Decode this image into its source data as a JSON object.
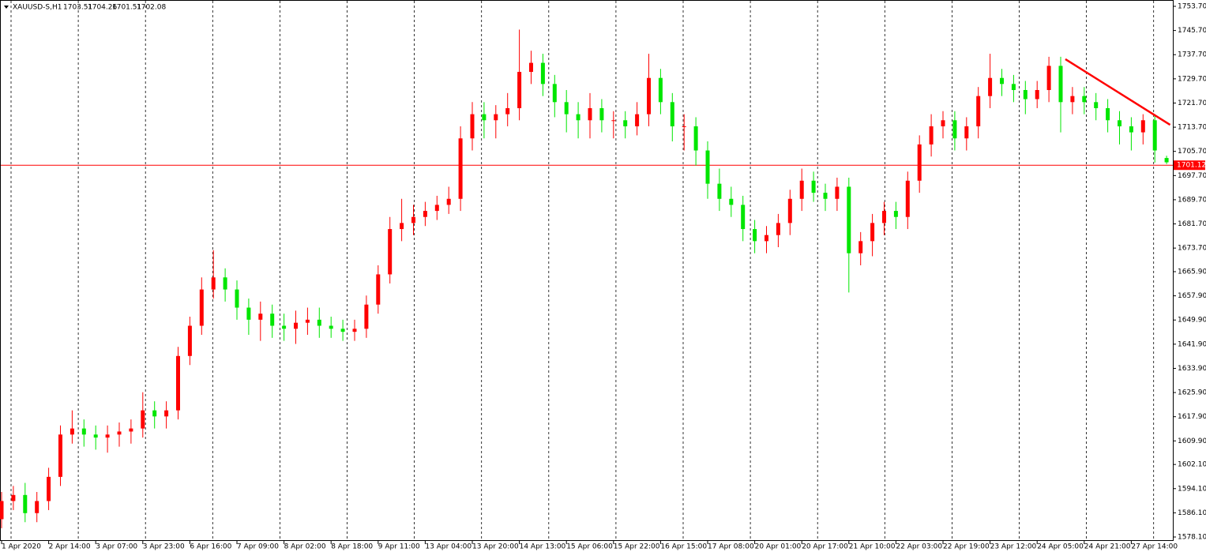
{
  "chart_data": {
    "type": "candlestick",
    "symbol": "XAUUSD-S,H1",
    "categories": [
      "1 Apr 2020",
      null,
      null,
      null,
      "2 Apr 14:00",
      null,
      null,
      null,
      "3 Apr 07:00",
      null,
      null,
      null,
      "3 Apr 23:00",
      null,
      null,
      null,
      "6 Apr 16:00",
      null,
      null,
      null,
      "7 Apr 09:00",
      null,
      null,
      null,
      "8 Apr 02:00",
      null,
      null,
      null,
      "8 Apr 18:00",
      null,
      null,
      null,
      "9 Apr 11:00",
      null,
      null,
      null,
      "13 Apr 04:00",
      null,
      null,
      null,
      "13 Apr 20:00",
      null,
      null,
      null,
      "14 Apr 13:00",
      null,
      null,
      null,
      "15 Apr 06:00",
      null,
      null,
      null,
      "15 Apr 22:00",
      null,
      null,
      null,
      "16 Apr 15:00",
      null,
      null,
      null,
      "17 Apr 08:00",
      null,
      null,
      null,
      "20 Apr 01:00",
      null,
      null,
      null,
      "20 Apr 17:00",
      null,
      null,
      null,
      "21 Apr 10:00",
      null,
      null,
      null,
      "22 Apr 03:00",
      null,
      null,
      null,
      "22 Apr 19:00",
      null,
      null,
      null,
      "23 Apr 12:00",
      null,
      null,
      null,
      "24 Apr 05:00",
      null,
      null,
      null,
      "24 Apr 21:00",
      null,
      null,
      null,
      "27 Apr 14:00",
      null,
      null,
      null
    ],
    "open": [
      1584,
      1590,
      1592,
      1586,
      1590,
      1598,
      1612,
      1614,
      1612,
      1611,
      1612,
      1613,
      1614,
      1620,
      1618,
      1620,
      1638,
      1648,
      1660,
      1664,
      1660,
      1654,
      1650,
      1652,
      1648,
      1647,
      1649,
      1650,
      1648,
      1647,
      1646,
      1647,
      1655,
      1665,
      1680,
      1682,
      1684,
      1686,
      1688,
      1690,
      1710,
      1718,
      1716,
      1718,
      1720,
      1732,
      1735,
      1728,
      1722,
      1718,
      1716,
      1720,
      1716,
      1716,
      1714,
      1718,
      1730,
      1722,
      1714,
      1714,
      1706,
      1695,
      1690,
      1688,
      1680,
      1676,
      1678,
      1682,
      1690,
      1696,
      1692,
      1690,
      1694,
      1672,
      1676,
      1682,
      1686,
      1684,
      1696,
      1708,
      1714,
      1716,
      1710,
      1714,
      1724,
      1730,
      1728,
      1726,
      1723,
      1726,
      1734,
      1722,
      1724,
      1722,
      1720,
      1716,
      1714,
      1712,
      1716,
      1703.51
    ],
    "high": [
      1593,
      1595,
      1596,
      1593,
      1601,
      1615,
      1620,
      1617,
      1615,
      1615,
      1616,
      1617,
      1626,
      1623,
      1623,
      1641,
      1651,
      1664,
      1673,
      1667,
      1663,
      1657,
      1656,
      1655,
      1652,
      1653,
      1654,
      1654,
      1651,
      1650,
      1650,
      1658,
      1668,
      1684,
      1690,
      1688,
      1689,
      1691,
      1694,
      1714,
      1722,
      1722,
      1721,
      1725,
      1746,
      1739,
      1738,
      1731,
      1726,
      1722,
      1725,
      1723,
      1719,
      1719,
      1722,
      1738,
      1733,
      1725,
      1718,
      1717,
      1709,
      1700,
      1694,
      1691,
      1683,
      1681,
      1685,
      1693,
      1700,
      1699,
      1695,
      1697,
      1697,
      1679,
      1685,
      1689,
      1689,
      1699,
      1711,
      1718,
      1719,
      1719,
      1717,
      1727,
      1738,
      1733,
      1731,
      1729,
      1729,
      1737,
      1737,
      1727,
      1727,
      1725,
      1723,
      1719,
      1717,
      1718,
      1718,
      1704.26
    ],
    "low": [
      1581,
      1587,
      1583,
      1583,
      1587,
      1595,
      1609,
      1608,
      1607,
      1606,
      1608,
      1609,
      1611,
      1614,
      1614,
      1617,
      1635,
      1645,
      1657,
      1656,
      1650,
      1645,
      1643,
      1644,
      1643,
      1642,
      1645,
      1644,
      1644,
      1643,
      1643,
      1644,
      1652,
      1662,
      1676,
      1678,
      1681,
      1683,
      1685,
      1686,
      1706,
      1710,
      1710,
      1714,
      1716,
      1728,
      1724,
      1717,
      1712,
      1710,
      1710,
      1712,
      1710,
      1710,
      1711,
      1714,
      1718,
      1709,
      1706,
      1701,
      1690,
      1686,
      1684,
      1676,
      1672,
      1672,
      1674,
      1678,
      1686,
      1689,
      1686,
      1686,
      1659,
      1668,
      1671,
      1678,
      1680,
      1680,
      1692,
      1704,
      1710,
      1706,
      1706,
      1710,
      1720,
      1724,
      1722,
      1718,
      1720,
      1722,
      1712,
      1718,
      1718,
      1716,
      1712,
      1708,
      1706,
      1708,
      1702,
      1701.51
    ],
    "close": [
      1590,
      1592,
      1586,
      1590,
      1598,
      1612,
      1614,
      1612,
      1611,
      1612,
      1613,
      1614,
      1620,
      1618,
      1620,
      1638,
      1648,
      1660,
      1664,
      1660,
      1654,
      1650,
      1652,
      1648,
      1647,
      1649,
      1650,
      1648,
      1647,
      1646,
      1647,
      1655,
      1665,
      1680,
      1682,
      1684,
      1686,
      1688,
      1690,
      1710,
      1718,
      1716,
      1718,
      1720,
      1732,
      1735,
      1728,
      1722,
      1718,
      1716,
      1720,
      1716,
      1716,
      1714,
      1718,
      1730,
      1722,
      1714,
      1714,
      1706,
      1695,
      1690,
      1688,
      1680,
      1676,
      1678,
      1682,
      1690,
      1696,
      1692,
      1690,
      1694,
      1672,
      1676,
      1682,
      1686,
      1684,
      1696,
      1708,
      1714,
      1716,
      1710,
      1714,
      1724,
      1730,
      1728,
      1726,
      1723,
      1726,
      1734,
      1722,
      1724,
      1722,
      1720,
      1716,
      1714,
      1712,
      1716,
      1706,
      1702.08
    ],
    "up_color": "#ff0000",
    "down_color": "#00e600",
    "bid": 1701.12,
    "bid_color": "#ff0000",
    "trendline": {
      "x": [
        90.4,
        99.3
      ],
      "y": [
        1736.2,
        1714.5
      ],
      "color": "#ff0000"
    },
    "ylim": [
      1578.1,
      1753.7
    ],
    "yticks": [
      {
        "value": 1753.7,
        "label": "1753.70"
      },
      {
        "value": 1745.7,
        "label": "1745.70"
      },
      {
        "value": 1737.7,
        "label": "1737.70"
      },
      {
        "value": 1729.7,
        "label": "1729.70"
      },
      {
        "value": 1721.7,
        "label": "1721.70"
      },
      {
        "value": 1713.7,
        "label": "1713.70"
      },
      {
        "value": 1705.7,
        "label": "1705.70"
      },
      {
        "value": 1697.7,
        "label": "1697.70"
      },
      {
        "value": 1689.7,
        "label": "1689.70"
      },
      {
        "value": 1681.7,
        "label": "1681.70"
      },
      {
        "value": 1673.7,
        "label": "1673.70"
      },
      {
        "value": 1665.9,
        "label": "1665.90"
      },
      {
        "value": 1657.9,
        "label": "1657.90"
      },
      {
        "value": 1649.9,
        "label": "1649.90"
      },
      {
        "value": 1641.9,
        "label": "1641.90"
      },
      {
        "value": 1633.9,
        "label": "1633.90"
      },
      {
        "value": 1625.9,
        "label": "1625.90"
      },
      {
        "value": 1617.9,
        "label": "1617.90"
      },
      {
        "value": 1609.9,
        "label": "1609.90"
      },
      {
        "value": 1602.1,
        "label": "1602.10"
      },
      {
        "value": 1594.1,
        "label": "1594.10"
      },
      {
        "value": 1586.1,
        "label": "1586.10"
      },
      {
        "value": 1578.1,
        "label": "1578.10"
      }
    ]
  }
}
